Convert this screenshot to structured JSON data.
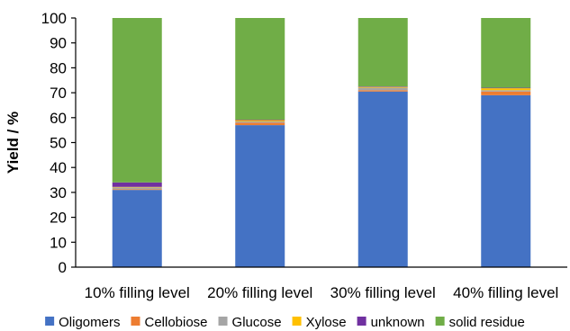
{
  "chart_data": {
    "type": "bar",
    "stacked": true,
    "categories": [
      "10% filling level",
      "20% filling level",
      "30% filling level",
      "40% filling level"
    ],
    "series": [
      {
        "name": "Oligomers",
        "color": "#4472C4",
        "values": [
          31,
          57,
          70.5,
          69
        ]
      },
      {
        "name": "Cellobiose",
        "color": "#ED7D31",
        "values": [
          0.3,
          1,
          0.5,
          1.5
        ]
      },
      {
        "name": "Glucose",
        "color": "#A5A5A5",
        "values": [
          0.7,
          0.5,
          1,
          0.5
        ]
      },
      {
        "name": "Xylose",
        "color": "#FFC000",
        "values": [
          0.2,
          0.5,
          0.3,
          0.8
        ]
      },
      {
        "name": "unknown",
        "color": "#7030A0",
        "values": [
          1.8,
          0.2,
          0.2,
          0.2
        ]
      },
      {
        "name": "solid residue",
        "color": "#70AD47",
        "values": [
          66,
          40.8,
          27.5,
          28
        ]
      }
    ],
    "title": "",
    "xlabel": "",
    "ylabel": "Yield / %",
    "ylim": [
      0,
      100
    ],
    "yticks": [
      "0",
      "10",
      "20",
      "30",
      "40",
      "50",
      "60",
      "70",
      "80",
      "90",
      "100"
    ],
    "grid": false,
    "legend": "bottom"
  }
}
